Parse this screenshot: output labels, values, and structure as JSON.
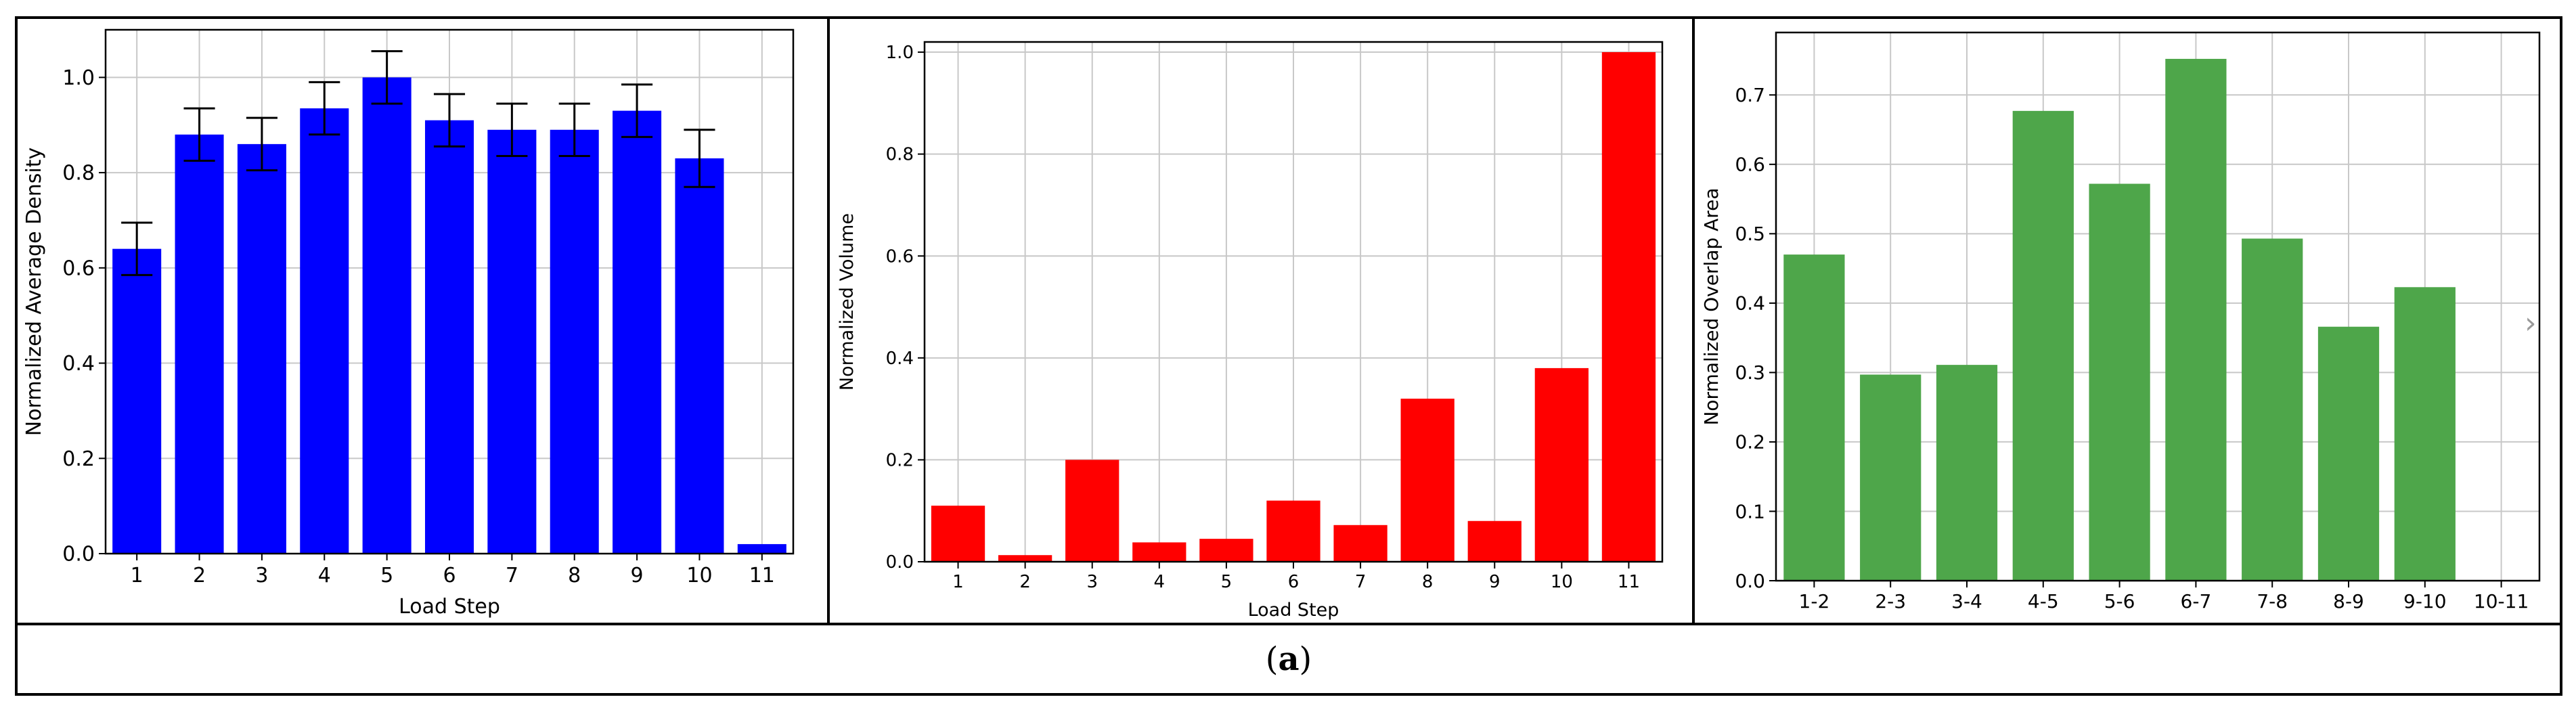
{
  "figure_label": "a",
  "chart_data": [
    {
      "type": "bar",
      "color": "#0000ff",
      "categories": [
        "1",
        "2",
        "3",
        "4",
        "5",
        "6",
        "7",
        "8",
        "9",
        "10",
        "11"
      ],
      "values": [
        0.64,
        0.88,
        0.86,
        0.935,
        1.0,
        0.91,
        0.89,
        0.89,
        0.93,
        0.83,
        0.02
      ],
      "error": [
        0.055,
        0.055,
        0.055,
        0.055,
        0.055,
        0.055,
        0.055,
        0.055,
        0.055,
        0.06,
        0.0
      ],
      "xlabel": "Load Step",
      "ylabel": "Normalized Average Density",
      "ylim": [
        0,
        1.1
      ],
      "yticks": [
        "0.0",
        "0.2",
        "0.4",
        "0.6",
        "0.8",
        "1.0"
      ],
      "grid": true
    },
    {
      "type": "bar",
      "color": "#ff0000",
      "categories": [
        "1",
        "2",
        "3",
        "4",
        "5",
        "6",
        "7",
        "8",
        "9",
        "10",
        "11"
      ],
      "values": [
        0.11,
        0.013,
        0.2,
        0.038,
        0.045,
        0.12,
        0.072,
        0.32,
        0.08,
        0.38,
        1.0
      ],
      "xlabel": "Load Step",
      "ylabel": "Normalized Volume",
      "ylim": [
        0,
        1.02
      ],
      "yticks": [
        "0.0",
        "0.2",
        "0.4",
        "0.6",
        "0.8",
        "1.0"
      ],
      "grid": true
    },
    {
      "type": "bar",
      "color": "#4ea64a",
      "categories": [
        "1-2",
        "2-3",
        "3-4",
        "4-5",
        "5-6",
        "6-7",
        "7-8",
        "8-9",
        "9-10",
        "10-11"
      ],
      "values": [
        0.47,
        0.297,
        0.311,
        0.677,
        0.572,
        0.752,
        0.493,
        0.366,
        0.423,
        0.0
      ],
      "xlabel": "",
      "ylabel": "Normalized Overlap Area",
      "ylim": [
        0,
        0.79
      ],
      "yticks": [
        "0.0",
        "0.1",
        "0.2",
        "0.3",
        "0.4",
        "0.5",
        "0.6",
        "0.7"
      ],
      "grid": true
    }
  ]
}
